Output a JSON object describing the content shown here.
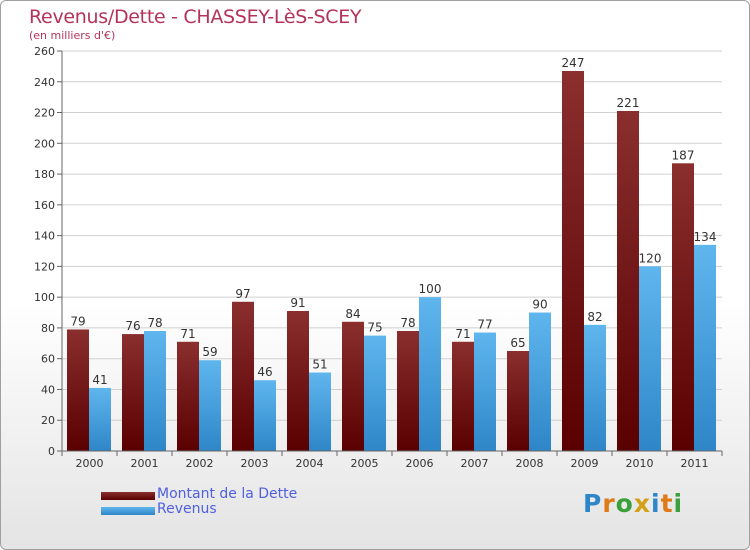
{
  "title": "Revenus/Dette - CHASSEY-LèS-SCEY",
  "subtitle": "(en milliers d'€)",
  "brand": "Proxiti",
  "colors": {
    "dette_top": "#8a2e2e",
    "dette_bottom": "#5a0000",
    "revenus_top": "#5fb6ee",
    "revenus_bottom": "#2e86c8",
    "axis_text": "#333333",
    "grid": "#d0d0d0"
  },
  "chart_data": {
    "type": "bar",
    "title": "Revenus/Dette - CHASSEY-LèS-SCEY",
    "ylabel": "(en milliers d'€)",
    "xlabel": "",
    "ylim": [
      0,
      260
    ],
    "yticks": [
      0,
      20,
      40,
      60,
      80,
      100,
      120,
      140,
      160,
      180,
      200,
      220,
      240,
      260
    ],
    "grid": true,
    "legend_position": "bottom-left",
    "categories": [
      "2000",
      "2001",
      "2002",
      "2003",
      "2004",
      "2005",
      "2006",
      "2007",
      "2008",
      "2009",
      "2010",
      "2011"
    ],
    "series": [
      {
        "name": "Montant de la Dette",
        "values": [
          79,
          76,
          71,
          97,
          91,
          84,
          78,
          71,
          65,
          247,
          221,
          187
        ]
      },
      {
        "name": "Revenus",
        "values": [
          41,
          78,
          59,
          46,
          51,
          75,
          100,
          77,
          90,
          82,
          120,
          134
        ]
      }
    ]
  }
}
